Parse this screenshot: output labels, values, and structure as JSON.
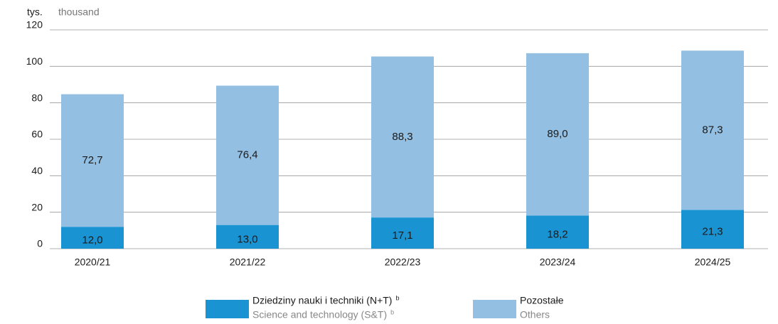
{
  "chart_data": {
    "type": "stacked_bar",
    "y_unit": "tys.",
    "y_unit_en": "thousand",
    "categories": [
      "2020/21",
      "2021/22",
      "2022/23",
      "2023/24",
      "2024/25"
    ],
    "series": [
      {
        "name": "Dziedziny nauki i techniki (N+T)",
        "name_en": "Science and technology (S&T)",
        "note": "b",
        "color": "#1a93d3",
        "values": [
          12.0,
          13.0,
          17.1,
          18.2,
          21.3
        ],
        "value_labels": [
          "12,0",
          "13,0",
          "17,1",
          "18,2",
          "21,3"
        ]
      },
      {
        "name": "Pozostałe",
        "name_en": "Others",
        "color": "#93bfe3",
        "values": [
          72.7,
          76.4,
          88.3,
          89.0,
          87.3
        ],
        "value_labels": [
          "72,7",
          "76,4",
          "88,3",
          "89,0",
          "87,3"
        ]
      }
    ],
    "ylim": [
      0,
      120
    ],
    "yticks": [
      0,
      20,
      40,
      60,
      80,
      100,
      120
    ],
    "grid": true,
    "legend": "bottom"
  }
}
